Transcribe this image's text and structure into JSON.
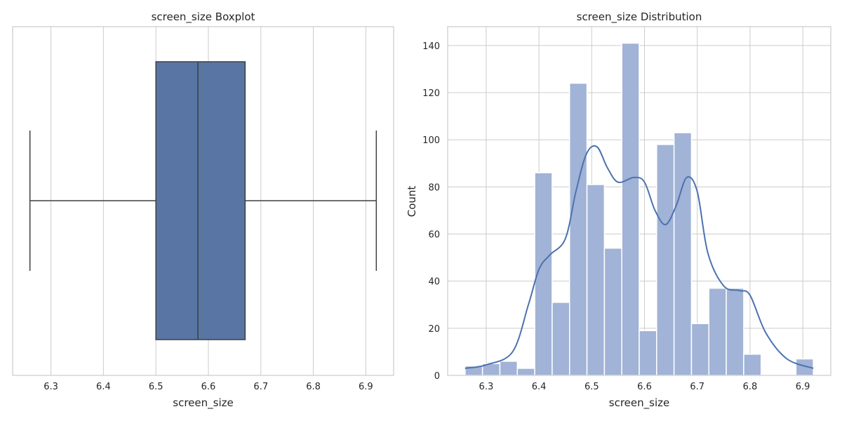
{
  "chart_data": [
    {
      "type": "boxplot",
      "title": "screen_size Boxplot",
      "xlabel": "screen_size",
      "ylabel": "",
      "xlim": [
        6.227,
        6.953
      ],
      "xticks": [
        6.3,
        6.4,
        6.5,
        6.6,
        6.7,
        6.8,
        6.9
      ],
      "grid": true,
      "box": {
        "min": 6.26,
        "q1": 6.5,
        "median": 6.58,
        "q3": 6.67,
        "max": 6.92
      },
      "colors": {
        "box": "#5975a4",
        "line": "#3f3f3f"
      }
    },
    {
      "type": "bar",
      "title": "screen_size Distribution",
      "xlabel": "screen_size",
      "ylabel": "Count",
      "xlim": [
        6.227,
        6.953
      ],
      "ylim": [
        0,
        148
      ],
      "xticks": [
        6.3,
        6.4,
        6.5,
        6.6,
        6.7,
        6.8,
        6.9
      ],
      "yticks": [
        0,
        20,
        40,
        60,
        80,
        100,
        120,
        140
      ],
      "grid": true,
      "bin_edges": [
        6.26,
        6.293,
        6.326,
        6.359,
        6.392,
        6.425,
        6.458,
        6.491,
        6.524,
        6.557,
        6.59,
        6.623,
        6.656,
        6.689,
        6.722,
        6.755,
        6.788,
        6.821,
        6.854,
        6.887,
        6.92
      ],
      "values": [
        4,
        5,
        6,
        3,
        86,
        31,
        124,
        81,
        54,
        141,
        19,
        98,
        103,
        22,
        37,
        37,
        9,
        0,
        0,
        7
      ],
      "kde": {
        "x": [
          6.26,
          6.3,
          6.35,
          6.38,
          6.4,
          6.42,
          6.45,
          6.47,
          6.49,
          6.51,
          6.53,
          6.55,
          6.58,
          6.6,
          6.62,
          6.64,
          6.66,
          6.68,
          6.7,
          6.72,
          6.75,
          6.78,
          6.8,
          6.83,
          6.87,
          6.92
        ],
        "y": [
          3,
          4.5,
          10,
          30,
          45,
          51,
          58,
          78,
          94,
          97,
          88,
          82,
          84,
          82,
          70,
          64,
          72,
          84,
          78,
          52,
          38,
          36,
          34,
          18,
          7,
          3
        ]
      },
      "colors": {
        "bar": "#a1b3d6",
        "bar_edge": "#ffffff",
        "kde": "#4c72b0"
      }
    }
  ]
}
